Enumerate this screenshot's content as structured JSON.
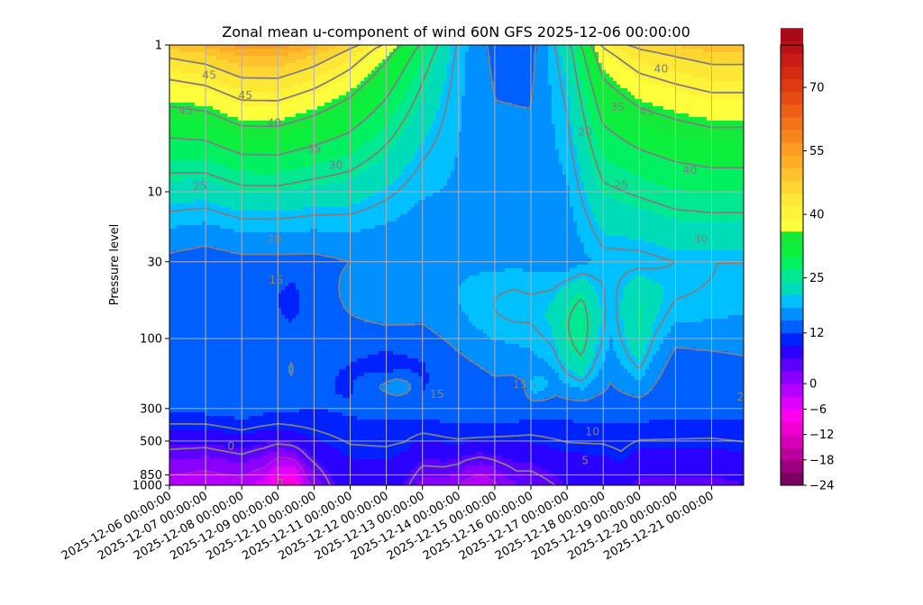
{
  "chart_data": {
    "type": "heatmap",
    "title": "Zonal mean u-component of wind 60N GFS 2025-12-06 00:00:00",
    "xlabel": "",
    "ylabel": "Pressure level",
    "x_tick_labels": [
      "2025-12-06 00:00:00",
      "2025-12-07 00:00:00",
      "2025-12-08 00:00:00",
      "2025-12-09 00:00:00",
      "2025-12-10 00:00:00",
      "2025-12-11 00:00:00",
      "2025-12-12 00:00:00",
      "2025-12-13 00:00:00",
      "2025-12-14 00:00:00",
      "2025-12-15 00:00:00",
      "2025-12-16 00:00:00",
      "2025-12-17 00:00:00",
      "2025-12-18 00:00:00",
      "2025-12-19 00:00:00",
      "2025-12-20 00:00:00",
      "2025-12-21 00:00:00"
    ],
    "x_range_days": [
      0,
      15
    ],
    "y_scale": "log",
    "y_inverted": true,
    "y_ticks": [
      1,
      10,
      30,
      100,
      300,
      500,
      850,
      1000
    ],
    "y_tick_labels": [
      "1",
      "10",
      "30",
      "100",
      "300",
      "500",
      "850",
      "1000"
    ],
    "y_range": [
      1000,
      1
    ],
    "grid": true,
    "colorbar": {
      "min": -24,
      "max": 80,
      "step": 3,
      "tick_values": [
        -24,
        -18,
        -12,
        -6,
        0,
        12,
        25,
        40,
        55,
        70
      ],
      "tick_labels": [
        "−24",
        "−18",
        "−12",
        "−6",
        "0",
        "12",
        "25",
        "40",
        "55",
        "70"
      ],
      "colors": [
        "#7a0060",
        "#9b007e",
        "#bb009c",
        "#d800b8",
        "#ef00d0",
        "#ff00ee",
        "#e000ff",
        "#b600ff",
        "#8a00ff",
        "#5c00ff",
        "#2a00ff",
        "#0022ff",
        "#0060ff",
        "#0090ff",
        "#00c0ff",
        "#00dcb8",
        "#00e890",
        "#00f060",
        "#0cef3c",
        "#14ea3a",
        "#fdff3c",
        "#fff33a",
        "#ffe736",
        "#ffd532",
        "#ffc22c",
        "#ffae26",
        "#ff9a22",
        "#f8861e",
        "#f4721a",
        "#ef5e16",
        "#e84c14",
        "#df3a12",
        "#d42a12",
        "#c81c14",
        "#b81216",
        "#a80a18"
      ]
    },
    "contour_labels": [
      {
        "text": "45",
        "day": 0.45,
        "p": 2.8
      },
      {
        "text": "45",
        "day": 1.1,
        "p": 1.6
      },
      {
        "text": "45",
        "day": 2.1,
        "p": 2.2
      },
      {
        "text": "40",
        "day": 2.9,
        "p": 3.4
      },
      {
        "text": "35",
        "day": 4.0,
        "p": 5.1
      },
      {
        "text": "30",
        "day": 4.6,
        "p": 6.6
      },
      {
        "text": "25",
        "day": 0.85,
        "p": 9.1
      },
      {
        "text": "20",
        "day": 2.9,
        "p": 21.0
      },
      {
        "text": "15",
        "day": 2.95,
        "p": 40.0
      },
      {
        "text": "20",
        "day": 11.5,
        "p": 3.9
      },
      {
        "text": "25",
        "day": 12.5,
        "p": 9.0
      },
      {
        "text": "30",
        "day": 14.7,
        "p": 21.0
      },
      {
        "text": "35",
        "day": 12.4,
        "p": 2.65
      },
      {
        "text": "40",
        "day": 14.4,
        "p": 7.1
      },
      {
        "text": "40",
        "day": 13.6,
        "p": 1.45
      },
      {
        "text": "45",
        "day": 13.2,
        "p": 2.85
      },
      {
        "text": "15",
        "day": 7.4,
        "p": 240.0
      },
      {
        "text": "15",
        "day": 9.7,
        "p": 205.0
      },
      {
        "text": "10",
        "day": 11.7,
        "p": 430.0
      },
      {
        "text": "5",
        "day": 11.5,
        "p": 680.0
      },
      {
        "text": "0",
        "day": 1.7,
        "p": 540.0
      },
      {
        "text": "0",
        "day": 3.05,
        "p": 970.0
      },
      {
        "text": "20",
        "day": 15.9,
        "p": 250.0
      }
    ]
  }
}
